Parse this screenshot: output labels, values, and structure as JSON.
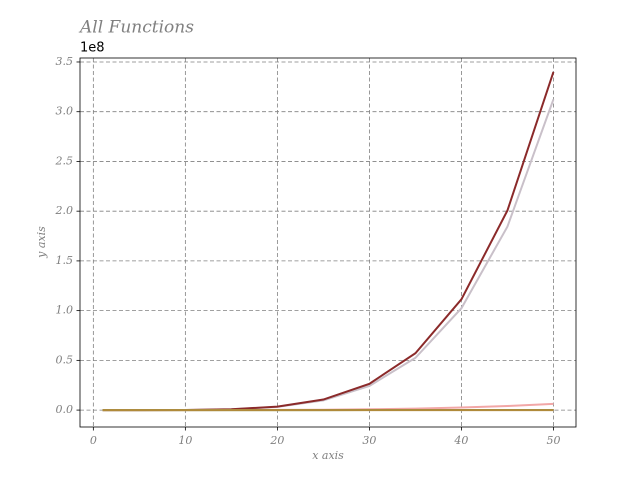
{
  "chart_data": {
    "type": "line",
    "title": "All Functions",
    "x_label": "x axis",
    "y_label": "y axis",
    "y_offset_label": "1e8",
    "x": [
      1,
      5,
      10,
      15,
      20,
      25,
      30,
      35,
      40,
      45,
      50
    ],
    "series": [
      {
        "color": "#c9c0c9",
        "values": [
          0,
          3e-05,
          0.001,
          0.0076,
          0.032,
          0.0977,
          0.243,
          0.525,
          1.024,
          1.845,
          3.125
        ]
      },
      {
        "color": "#8b2a2a",
        "values": [
          0,
          3e-05,
          0.0011,
          0.0083,
          0.0348,
          0.1063,
          0.2644,
          0.5714,
          1.114,
          2.007,
          3.4
        ]
      },
      {
        "color": "#f2a7a7",
        "values": [
          0,
          6e-06,
          0.0001,
          0.0005,
          0.0016,
          0.0039,
          0.0081,
          0.015,
          0.0256,
          0.041,
          0.0625
        ]
      },
      {
        "color": "#7f9e5e",
        "values": [
          0,
          0,
          0,
          0,
          0.0001,
          0.0002,
          0.0003,
          0.0004,
          0.0006,
          0.0009,
          0.0013
        ]
      },
      {
        "color": "#b08a3a",
        "values": [
          0,
          0,
          0,
          0,
          0,
          0,
          0,
          0,
          0,
          0,
          0
        ]
      }
    ],
    "xlim": [
      -1.45,
      52.45
    ],
    "ylim": [
      -0.17,
      3.54
    ],
    "xticks": [
      0,
      10,
      20,
      30,
      40,
      50
    ],
    "yticks": [
      {
        "value": 0,
        "label": "0.0"
      },
      0.5,
      {
        "value": 1,
        "label": "1.0"
      },
      1.5,
      {
        "value": 2,
        "label": "2.0"
      },
      2.5,
      {
        "value": 3,
        "label": "3.0"
      },
      3.5
    ],
    "grid": true
  }
}
